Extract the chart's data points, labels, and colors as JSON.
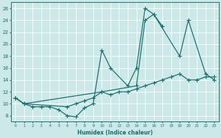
{
  "xlabel": "Humidex (Indice chaleur)",
  "bg_color": "#cce8e8",
  "line_color": "#1a6b6b",
  "grid_color": "#b8d8d8",
  "xlim": [
    -0.5,
    23.5
  ],
  "ylim": [
    7,
    27
  ],
  "xticks": [
    0,
    1,
    2,
    3,
    4,
    5,
    6,
    7,
    8,
    9,
    10,
    11,
    12,
    13,
    14,
    15,
    16,
    17,
    18,
    19,
    20,
    21,
    22,
    23
  ],
  "yticks": [
    8,
    10,
    12,
    14,
    16,
    18,
    20,
    22,
    24,
    26
  ],
  "line1_x": [
    0,
    1,
    2,
    3,
    4,
    5,
    6,
    7,
    8,
    9,
    10,
    11,
    13,
    14,
    15,
    16,
    17
  ],
  "line1_y": [
    11,
    10,
    9.5,
    9.5,
    9.5,
    9,
    8,
    7.8,
    9.3,
    10,
    19,
    16,
    13,
    16,
    26,
    25,
    23
  ],
  "line2_x": [
    0,
    1,
    10,
    14,
    15,
    16,
    19,
    20,
    22,
    23
  ],
  "line2_y": [
    11,
    10,
    12,
    13,
    24,
    25,
    18,
    24,
    15,
    14
  ],
  "line3_x": [
    0,
    1,
    6,
    7,
    8,
    9,
    10,
    11,
    12,
    13,
    14,
    15,
    16,
    17,
    18,
    19,
    20,
    21,
    22,
    23
  ],
  "line3_y": [
    11,
    10,
    9.5,
    10,
    10.5,
    11,
    12,
    11.5,
    12,
    12,
    12.5,
    13,
    13.5,
    14,
    14.5,
    15,
    14,
    14,
    14.5,
    14.5
  ]
}
